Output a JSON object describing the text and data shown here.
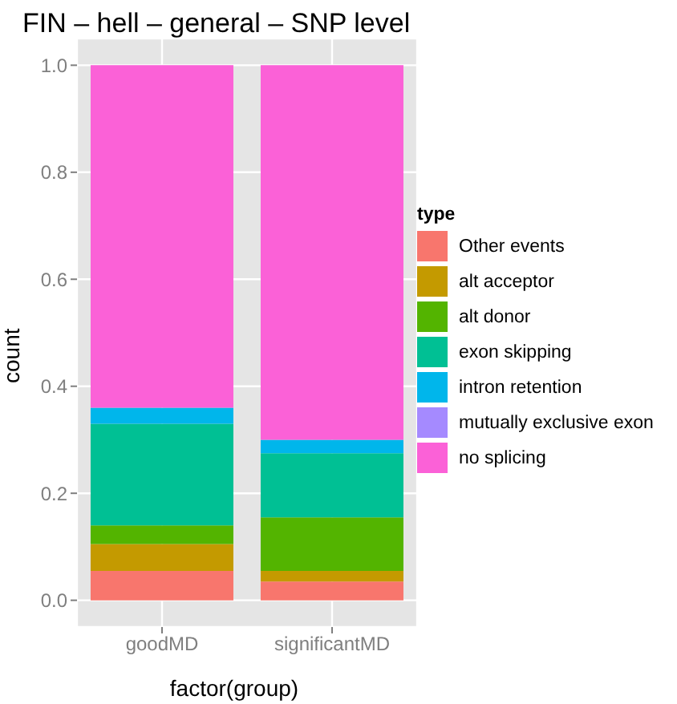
{
  "chart_data": {
    "type": "bar",
    "title": "FIN – hell – general – SNP level",
    "xlabel": "factor(group)",
    "ylabel": "count",
    "legend_title": "type",
    "categories": [
      "goodMD",
      "significantMD"
    ],
    "stacked": true,
    "grid": true,
    "legend": "right",
    "ylim": [
      -0.05,
      1.05
    ],
    "yticks": [
      {
        "value": 0,
        "label": "0.0"
      },
      0.2,
      0.4,
      0.6,
      0.8,
      {
        "value": 1,
        "label": "1.0"
      }
    ],
    "series": [
      {
        "name": "Other events",
        "color": "#f8766d",
        "values": [
          0.055,
          0.035
        ]
      },
      {
        "name": "alt acceptor",
        "color": "#c49a00",
        "values": [
          0.05,
          0.02
        ]
      },
      {
        "name": "alt donor",
        "color": "#53b400",
        "values": [
          0.035,
          0.1
        ]
      },
      {
        "name": "exon skipping",
        "color": "#00c094",
        "values": [
          0.19,
          0.12
        ]
      },
      {
        "name": "intron retention",
        "color": "#00b6eb",
        "values": [
          0.03,
          0.025
        ]
      },
      {
        "name": "mutually exclusive exon",
        "color": "#a58aff",
        "values": [
          0,
          0
        ]
      },
      {
        "name": "no splicing",
        "color": "#fb61d7",
        "values": [
          0.64,
          0.7
        ]
      }
    ]
  }
}
